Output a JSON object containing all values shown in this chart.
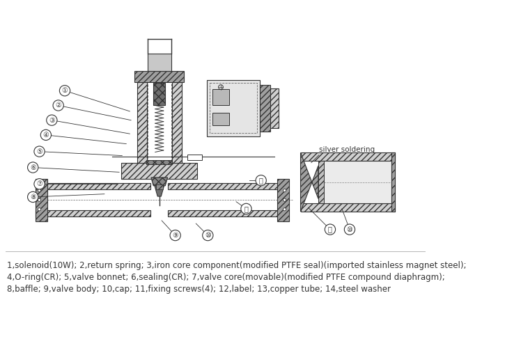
{
  "bg_color": "#ffffff",
  "line_color": "#333333",
  "legend_lines": [
    "1,solenoid(10W); 2,return spring; 3,iron core component(modified PTFE seal)(imported stainless magnet steel);",
    "4,O-ring(CR); 5,valve bonnet; 6,sealing(CR); 7,valve core(movable)(modified PTFE compound diaphragm);",
    "8,baffle; 9,valve body; 10,cap; 11,fixing screws(4); 12,label; 13,copper tube; 14,steel washer"
  ],
  "silver_soldering_label": "silver soldering",
  "label_fontsize": 8.5
}
